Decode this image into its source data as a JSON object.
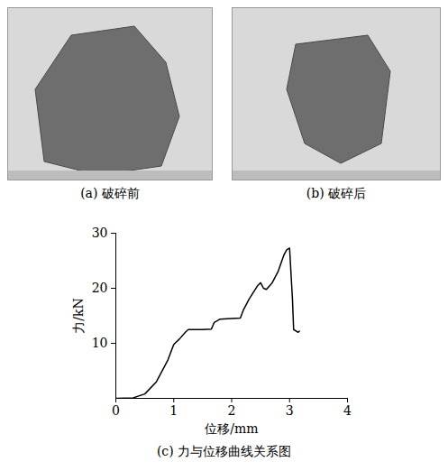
{
  "photos": [
    {
      "caption": "(a) 破碎前"
    },
    {
      "caption": "(b) 破碎后"
    }
  ],
  "chart_data": {
    "type": "line",
    "title": "(c) 力与位移曲线关系图",
    "x_label": "位移/mm",
    "y_label": "力/kN",
    "x": [
      0,
      0.3,
      0.5,
      0.7,
      0.9,
      1.0,
      1.1,
      1.2,
      1.25,
      1.5,
      1.65,
      1.7,
      1.8,
      2.0,
      2.15,
      2.2,
      2.3,
      2.45,
      2.5,
      2.55,
      2.6,
      2.7,
      2.8,
      2.9,
      2.95,
      3.0,
      3.05,
      3.07,
      3.15,
      3.17
    ],
    "values": [
      0,
      0.1,
      0.8,
      3,
      7,
      9.8,
      10.8,
      12,
      12.5,
      12.5,
      12.6,
      13.8,
      14.4,
      14.5,
      14.6,
      16,
      18,
      20.5,
      21,
      20,
      19.8,
      21,
      23,
      26,
      27,
      27.3,
      18,
      12.5,
      12,
      12.2
    ],
    "color": "#000000",
    "xlim": [
      0,
      4
    ],
    "xticks": [
      0,
      1,
      2,
      3,
      4
    ],
    "ylim": [
      0,
      30
    ],
    "yticks": [
      10,
      20,
      30
    ],
    "grid": false
  }
}
